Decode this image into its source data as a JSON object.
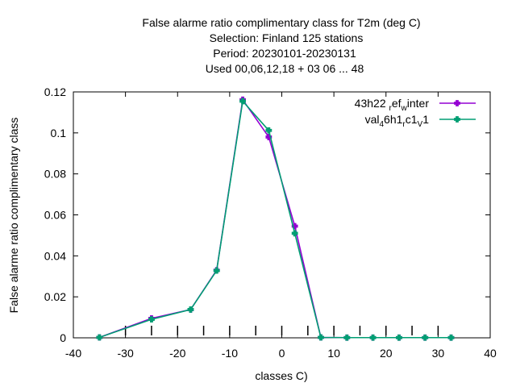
{
  "chart_data": {
    "type": "line",
    "title_lines": [
      "False alarme ratio complimentary class  for T2m (deg C)",
      "Selection: Finland    125 stations",
      "Period: 20230101-20230131",
      "Used  00,06,12,18  + 03 06 ... 48"
    ],
    "xlabel": "classes C)",
    "ylabel": "False alarme ratio complimentary class",
    "xlim": [
      -40,
      40
    ],
    "ylim": [
      0,
      0.12
    ],
    "xticks": [
      -40,
      -30,
      -20,
      -10,
      0,
      10,
      20,
      30,
      40
    ],
    "yticks": [
      0,
      0.02,
      0.04,
      0.06,
      0.08,
      0.1,
      0.12
    ],
    "ytick_labels": [
      "0",
      "0.02",
      "0.04",
      "0.06",
      "0.08",
      "0.1",
      "0.12"
    ],
    "class_marks_x": [
      -30,
      -25,
      -20,
      -15,
      -10,
      -5,
      0,
      5,
      10,
      15,
      20,
      25,
      30
    ],
    "legend_position": "top-right",
    "series": [
      {
        "name": "43h22_ref_winter",
        "name_parts": [
          [
            "43h22 ",
            ""
          ],
          [
            "r",
            "sub"
          ],
          [
            "ef",
            ""
          ],
          [
            "w",
            "sub"
          ],
          [
            "inter",
            ""
          ]
        ],
        "color": "#9400d3",
        "x": [
          -35,
          -25,
          -17.5,
          -12.5,
          -7.5,
          -2.5,
          2.5,
          7.5,
          12.5,
          17.5,
          22.5,
          27.5,
          32.5
        ],
        "y": [
          0.0002,
          0.0095,
          0.0138,
          0.033,
          0.1162,
          0.098,
          0.0545,
          0.0002,
          0.0001,
          0.0001,
          0.0001,
          0.0001,
          0.0001
        ]
      },
      {
        "name": "val_46h1_rc1_V1",
        "name_parts": [
          [
            "val",
            ""
          ],
          [
            "4",
            "sub"
          ],
          [
            "6h1",
            ""
          ],
          [
            "r",
            "sub"
          ],
          [
            "c1",
            ""
          ],
          [
            "V",
            "sub"
          ],
          [
            "1",
            ""
          ]
        ],
        "color": "#009e73",
        "x": [
          -35,
          -25,
          -17.5,
          -12.5,
          -7.5,
          -2.5,
          2.5,
          7.5,
          12.5,
          17.5,
          22.5,
          27.5,
          32.5
        ],
        "y": [
          0.0002,
          0.009,
          0.0138,
          0.0328,
          0.1155,
          0.1012,
          0.051,
          0.0002,
          0.0001,
          0.0001,
          0.0001,
          0.0001,
          0.0001
        ]
      }
    ],
    "grid": false
  }
}
